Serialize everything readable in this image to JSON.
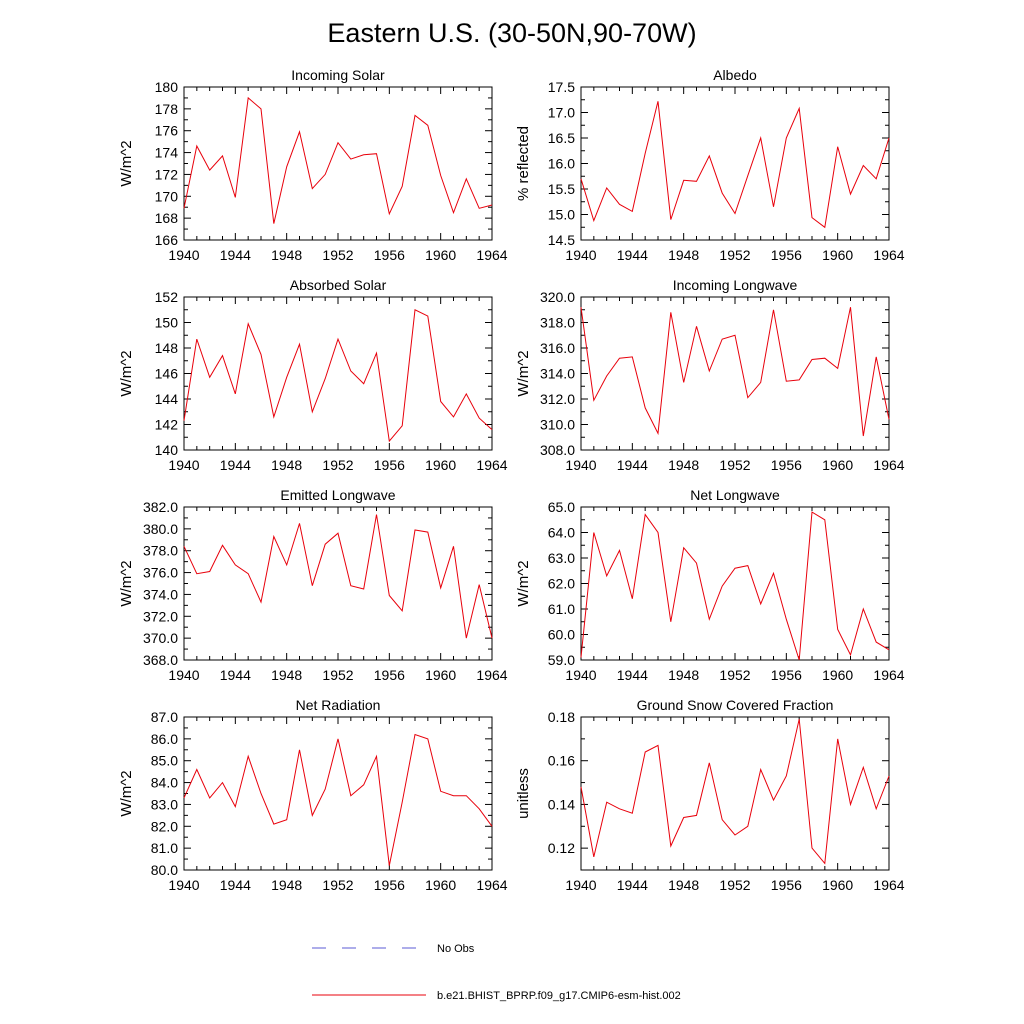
{
  "figure": {
    "title": "Eastern U.S. (30-50N,90-70W)",
    "series_color": "#e8000b",
    "obs_color": "#5b5bd6"
  },
  "legend": {
    "obs_label": "No Obs",
    "model_label": "b.e21.BHIST_BPRP.f09_g17.CMIP6-esm-hist.002"
  },
  "chart_data": [
    {
      "type": "line",
      "title": "Incoming Solar",
      "ylabel": "W/m^2",
      "xlim": [
        1940,
        1964
      ],
      "ylim": [
        166,
        180
      ],
      "yticks": [
        166,
        168,
        170,
        172,
        174,
        176,
        178,
        180
      ],
      "ytick_labels": [
        "166",
        "168",
        "170",
        "172",
        "174",
        "176",
        "178",
        "180"
      ],
      "xticks": [
        1940,
        1944,
        1948,
        1952,
        1956,
        1960,
        1964
      ],
      "xtick_labels": [
        "1940",
        "1944",
        "1948",
        "1952",
        "1956",
        "1960",
        "1964"
      ],
      "x": [
        1940,
        1941,
        1942,
        1943,
        1944,
        1945,
        1946,
        1947,
        1948,
        1949,
        1950,
        1951,
        1952,
        1953,
        1954,
        1955,
        1956,
        1957,
        1958,
        1959,
        1960,
        1961,
        1962,
        1963,
        1964
      ],
      "series": [
        {
          "name": "b.e21.BHIST_BPRP.f09_g17.CMIP6-esm-hist.002",
          "values": [
            168.9,
            174.6,
            172.4,
            173.7,
            169.9,
            179.0,
            178.0,
            167.5,
            172.7,
            175.9,
            170.7,
            172.0,
            174.9,
            173.4,
            173.8,
            173.9,
            168.4,
            170.9,
            177.4,
            176.5,
            171.9,
            168.5,
            171.6,
            168.9,
            169.2
          ]
        }
      ]
    },
    {
      "type": "line",
      "title": "Albedo",
      "ylabel": "% reflected",
      "xlim": [
        1940,
        1964
      ],
      "ylim": [
        14.5,
        17.5
      ],
      "yticks": [
        14.5,
        15.0,
        15.5,
        16.0,
        16.5,
        17.0,
        17.5
      ],
      "ytick_labels": [
        "14.5",
        "15.0",
        "15.5",
        "16.0",
        "16.5",
        "17.0",
        "17.5"
      ],
      "xticks": [
        1940,
        1944,
        1948,
        1952,
        1956,
        1960,
        1964
      ],
      "xtick_labels": [
        "1940",
        "1944",
        "1948",
        "1952",
        "1956",
        "1960",
        "1964"
      ],
      "x": [
        1940,
        1941,
        1942,
        1943,
        1944,
        1945,
        1946,
        1947,
        1948,
        1949,
        1950,
        1951,
        1952,
        1953,
        1954,
        1955,
        1956,
        1957,
        1958,
        1959,
        1960,
        1961,
        1962,
        1963,
        1964
      ],
      "series": [
        {
          "name": "b.e21.BHIST_BPRP.f09_g17.CMIP6-esm-hist.002",
          "values": [
            15.7,
            14.88,
            15.52,
            15.2,
            15.06,
            16.2,
            17.22,
            14.9,
            15.67,
            15.65,
            16.15,
            15.42,
            15.02,
            15.76,
            16.5,
            15.15,
            16.5,
            17.08,
            14.94,
            14.75,
            16.33,
            15.4,
            15.96,
            15.7,
            16.5
          ]
        }
      ]
    },
    {
      "type": "line",
      "title": "Absorbed Solar",
      "ylabel": "W/m^2",
      "xlim": [
        1940,
        1964
      ],
      "ylim": [
        140,
        152
      ],
      "yticks": [
        140,
        142,
        144,
        146,
        148,
        150,
        152
      ],
      "ytick_labels": [
        "140",
        "142",
        "144",
        "146",
        "148",
        "150",
        "152"
      ],
      "xticks": [
        1940,
        1944,
        1948,
        1952,
        1956,
        1960,
        1964
      ],
      "xtick_labels": [
        "1940",
        "1944",
        "1948",
        "1952",
        "1956",
        "1960",
        "1964"
      ],
      "x": [
        1940,
        1941,
        1942,
        1943,
        1944,
        1945,
        1946,
        1947,
        1948,
        1949,
        1950,
        1951,
        1952,
        1953,
        1954,
        1955,
        1956,
        1957,
        1958,
        1959,
        1960,
        1961,
        1962,
        1963,
        1964
      ],
      "series": [
        {
          "name": "b.e21.BHIST_BPRP.f09_g17.CMIP6-esm-hist.002",
          "values": [
            142.3,
            148.7,
            145.7,
            147.4,
            144.4,
            149.9,
            147.5,
            142.6,
            145.7,
            148.3,
            143.0,
            145.6,
            148.7,
            146.2,
            145.2,
            147.6,
            140.7,
            141.9,
            151.0,
            150.5,
            143.8,
            142.6,
            144.4,
            142.5,
            141.6
          ]
        }
      ]
    },
    {
      "type": "line",
      "title": "Incoming Longwave",
      "ylabel": "W/m^2",
      "xlim": [
        1940,
        1964
      ],
      "ylim": [
        308,
        320
      ],
      "yticks": [
        308,
        310,
        312,
        314,
        316,
        318,
        320
      ],
      "ytick_labels": [
        "308.0",
        "310.0",
        "312.0",
        "314.0",
        "316.0",
        "318.0",
        "320.0"
      ],
      "xticks": [
        1940,
        1944,
        1948,
        1952,
        1956,
        1960,
        1964
      ],
      "xtick_labels": [
        "1940",
        "1944",
        "1948",
        "1952",
        "1956",
        "1960",
        "1964"
      ],
      "x": [
        1940,
        1941,
        1942,
        1943,
        1944,
        1945,
        1946,
        1947,
        1948,
        1949,
        1950,
        1951,
        1952,
        1953,
        1954,
        1955,
        1956,
        1957,
        1958,
        1959,
        1960,
        1961,
        1962,
        1963,
        1964
      ],
      "series": [
        {
          "name": "b.e21.BHIST_BPRP.f09_g17.CMIP6-esm-hist.002",
          "values": [
            319.2,
            311.9,
            313.8,
            315.2,
            315.3,
            311.3,
            309.3,
            318.8,
            313.3,
            317.7,
            314.2,
            316.7,
            317.0,
            312.1,
            313.3,
            319.0,
            313.4,
            313.5,
            315.1,
            315.2,
            314.4,
            319.2,
            309.1,
            315.3,
            310.4
          ]
        }
      ]
    },
    {
      "type": "line",
      "title": "Emitted Longwave",
      "ylabel": "W/m^2",
      "xlim": [
        1940,
        1964
      ],
      "ylim": [
        368,
        382
      ],
      "yticks": [
        368,
        370,
        372,
        374,
        376,
        378,
        380,
        382
      ],
      "ytick_labels": [
        "368.0",
        "370.0",
        "372.0",
        "374.0",
        "376.0",
        "378.0",
        "380.0",
        "382.0"
      ],
      "xticks": [
        1940,
        1944,
        1948,
        1952,
        1956,
        1960,
        1964
      ],
      "xtick_labels": [
        "1940",
        "1944",
        "1948",
        "1952",
        "1956",
        "1960",
        "1964"
      ],
      "x": [
        1940,
        1941,
        1942,
        1943,
        1944,
        1945,
        1946,
        1947,
        1948,
        1949,
        1950,
        1951,
        1952,
        1953,
        1954,
        1955,
        1956,
        1957,
        1958,
        1959,
        1960,
        1961,
        1962,
        1963,
        1964
      ],
      "series": [
        {
          "name": "b.e21.BHIST_BPRP.f09_g17.CMIP6-esm-hist.002",
          "values": [
            378.4,
            375.9,
            376.1,
            378.5,
            376.7,
            375.9,
            373.3,
            379.3,
            376.7,
            380.5,
            374.8,
            378.6,
            379.6,
            374.8,
            374.5,
            381.3,
            373.9,
            372.5,
            379.9,
            379.7,
            374.6,
            378.4,
            370.0,
            374.9,
            370.0
          ]
        }
      ]
    },
    {
      "type": "line",
      "title": "Net Longwave",
      "ylabel": "W/m^2",
      "xlim": [
        1940,
        1964
      ],
      "ylim": [
        59,
        65
      ],
      "yticks": [
        59,
        60,
        61,
        62,
        63,
        64,
        65
      ],
      "ytick_labels": [
        "59.0",
        "60.0",
        "61.0",
        "62.0",
        "63.0",
        "64.0",
        "65.0"
      ],
      "xticks": [
        1940,
        1944,
        1948,
        1952,
        1956,
        1960,
        1964
      ],
      "xtick_labels": [
        "1940",
        "1944",
        "1948",
        "1952",
        "1956",
        "1960",
        "1964"
      ],
      "x": [
        1940,
        1941,
        1942,
        1943,
        1944,
        1945,
        1946,
        1947,
        1948,
        1949,
        1950,
        1951,
        1952,
        1953,
        1954,
        1955,
        1956,
        1957,
        1958,
        1959,
        1960,
        1961,
        1962,
        1963,
        1964
      ],
      "series": [
        {
          "name": "b.e21.BHIST_BPRP.f09_g17.CMIP6-esm-hist.002",
          "values": [
            59.1,
            64.0,
            62.3,
            63.3,
            61.4,
            64.7,
            64.0,
            60.5,
            63.4,
            62.8,
            60.6,
            61.9,
            62.6,
            62.7,
            61.2,
            62.4,
            60.6,
            59.0,
            64.8,
            64.5,
            60.2,
            59.2,
            61.0,
            59.7,
            59.4
          ]
        }
      ]
    },
    {
      "type": "line",
      "title": "Net Radiation",
      "ylabel": "W/m^2",
      "xlim": [
        1940,
        1964
      ],
      "ylim": [
        80,
        87
      ],
      "yticks": [
        80,
        81,
        82,
        83,
        84,
        85,
        86,
        87
      ],
      "ytick_labels": [
        "80.0",
        "81.0",
        "82.0",
        "83.0",
        "84.0",
        "85.0",
        "86.0",
        "87.0"
      ],
      "xticks": [
        1940,
        1944,
        1948,
        1952,
        1956,
        1960,
        1964
      ],
      "xtick_labels": [
        "1940",
        "1944",
        "1948",
        "1952",
        "1956",
        "1960",
        "1964"
      ],
      "x": [
        1940,
        1941,
        1942,
        1943,
        1944,
        1945,
        1946,
        1947,
        1948,
        1949,
        1950,
        1951,
        1952,
        1953,
        1954,
        1955,
        1956,
        1957,
        1958,
        1959,
        1960,
        1961,
        1962,
        1963,
        1964
      ],
      "series": [
        {
          "name": "b.e21.BHIST_BPRP.f09_g17.CMIP6-esm-hist.002",
          "values": [
            83.3,
            84.6,
            83.3,
            84.0,
            82.9,
            85.2,
            83.5,
            82.1,
            82.3,
            85.5,
            82.5,
            83.7,
            86.0,
            83.4,
            83.9,
            85.2,
            80.2,
            83.1,
            86.2,
            86.0,
            83.6,
            83.4,
            83.4,
            82.8,
            82.0
          ]
        }
      ]
    },
    {
      "type": "line",
      "title": "Ground Snow Covered Fraction",
      "ylabel": "unitless",
      "xlim": [
        1940,
        1964
      ],
      "ylim": [
        0.11,
        0.18
      ],
      "yticks": [
        0.12,
        0.14,
        0.16,
        0.18
      ],
      "ytick_labels": [
        "0.12",
        "0.14",
        "0.16",
        "0.18"
      ],
      "xticks": [
        1940,
        1944,
        1948,
        1952,
        1956,
        1960,
        1964
      ],
      "xtick_labels": [
        "1940",
        "1944",
        "1948",
        "1952",
        "1956",
        "1960",
        "1964"
      ],
      "x": [
        1940,
        1941,
        1942,
        1943,
        1944,
        1945,
        1946,
        1947,
        1948,
        1949,
        1950,
        1951,
        1952,
        1953,
        1954,
        1955,
        1956,
        1957,
        1958,
        1959,
        1960,
        1961,
        1962,
        1963,
        1964
      ],
      "series": [
        {
          "name": "b.e21.BHIST_BPRP.f09_g17.CMIP6-esm-hist.002",
          "values": [
            0.148,
            0.116,
            0.141,
            0.138,
            0.136,
            0.164,
            0.167,
            0.121,
            0.134,
            0.135,
            0.159,
            0.133,
            0.126,
            0.13,
            0.156,
            0.142,
            0.153,
            0.179,
            0.12,
            0.113,
            0.17,
            0.14,
            0.157,
            0.138,
            0.153
          ]
        }
      ]
    }
  ]
}
